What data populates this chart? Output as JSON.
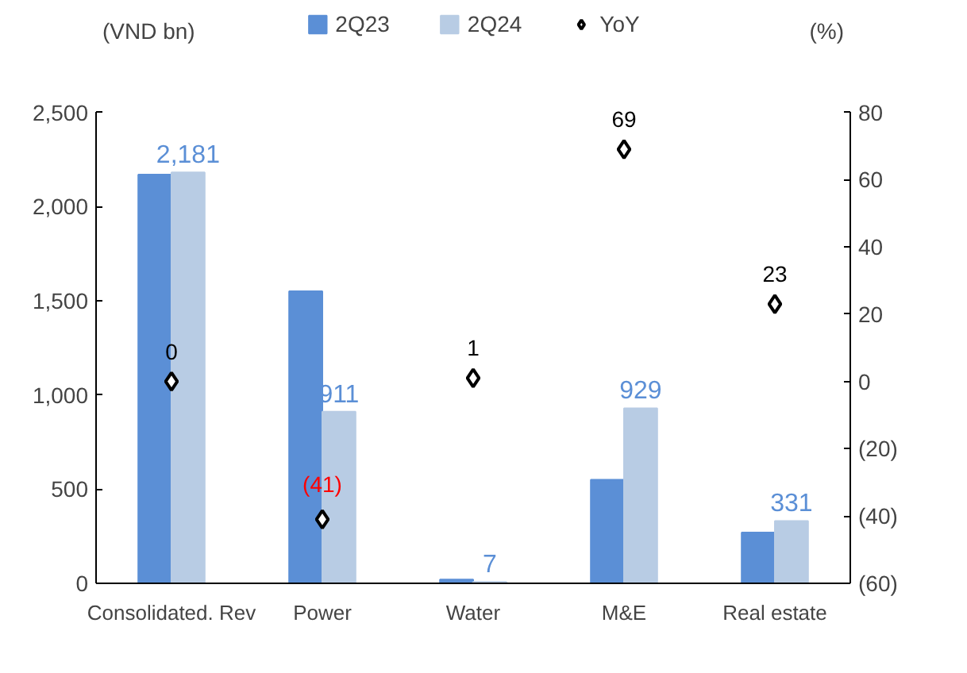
{
  "chart_data": {
    "type": "bar",
    "categories": [
      "Consolidated. Rev",
      "Power",
      "Water",
      "M&E",
      "Real estate"
    ],
    "ylabel": "(VND bn)",
    "y2label": "(%)",
    "series": [
      {
        "name": "2Q23",
        "color": "#5b8fd6",
        "values": [
          2170,
          1550,
          20,
          550,
          270
        ]
      },
      {
        "name": "2Q24",
        "color": "#b8cce4",
        "values": [
          2181,
          911,
          7,
          929,
          331
        ],
        "value_labels": [
          "2,181",
          "911",
          "7",
          "929",
          "331"
        ]
      },
      {
        "name": "YoY",
        "type": "scatter",
        "axis": "y2",
        "color": "#000000",
        "marker": "diamond",
        "values": [
          0,
          -41,
          1,
          69,
          23
        ],
        "value_labels": [
          "0",
          "(41)",
          "1",
          "69",
          "23"
        ]
      }
    ],
    "ylim": [
      0,
      2500
    ],
    "yticks": [
      0,
      {
        "value": 500,
        "label": "500"
      },
      {
        "value": 1000,
        "label": "1,000"
      },
      {
        "value": 1500,
        "label": "1,500"
      },
      {
        "value": 2000,
        "label": "2,000"
      },
      {
        "value": 2500,
        "label": "2,500"
      }
    ],
    "y2lim": [
      -60,
      80
    ],
    "y2ticks": [
      {
        "value": -60,
        "label": "(60)"
      },
      {
        "value": -40,
        "label": "(40)"
      },
      {
        "value": -20,
        "label": "(20)"
      },
      0,
      20,
      40,
      60,
      80
    ],
    "grid": false,
    "legend": "top"
  }
}
